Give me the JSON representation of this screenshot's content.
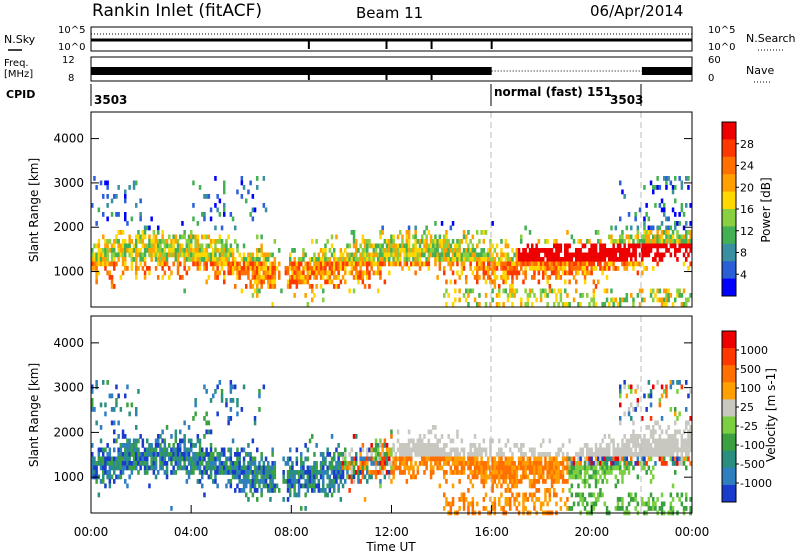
{
  "header": {
    "title": "Rankin Inlet (fitACF)",
    "beam": "Beam 11",
    "date": "06/Apr/2014"
  },
  "status_panels": {
    "nsky_label": "N.Sky",
    "nsky_ticks": [
      "10^5",
      "10^0"
    ],
    "nsearch_label": "N.Search",
    "nsearch_ticks": [
      "10^5",
      "10^0"
    ],
    "freq_label": "Freq.",
    "freq_unit": "[MHz]",
    "freq_ticks": [
      "12",
      "8"
    ],
    "nave_label": "Nave",
    "nave_ticks": [
      "60",
      "0"
    ],
    "cpid_label": "CPID",
    "cpid_segments": [
      {
        "label": "3503",
        "start_h": 0
      },
      {
        "label": "normal (fast) 151",
        "start_h": 16
      },
      {
        "label": "3503",
        "start_h": 22
      }
    ]
  },
  "chart_data": [
    {
      "type": "heatmap",
      "title": "",
      "xlabel": "",
      "ylabel": "Slant Range [km]",
      "xlim": [
        0,
        24
      ],
      "ylim": [
        200,
        4600
      ],
      "yticks": [
        "4000",
        "3000",
        "2000",
        "1000"
      ],
      "colorbar_label": "Power [dB]",
      "colorbar_ticks": [
        "28",
        "24",
        "20",
        "16",
        "12",
        "8",
        "4"
      ],
      "colorscale": [
        "#0000ff",
        "#2a5fd8",
        "#3a8fa0",
        "#44b054",
        "#88d040",
        "#ffd800",
        "#ffa000",
        "#ff7000",
        "#ff3800",
        "#ee0000"
      ]
    },
    {
      "type": "heatmap",
      "title": "",
      "xlabel": "Time UT",
      "ylabel": "Slant Range [km]",
      "xlim": [
        0,
        24
      ],
      "ylim": [
        200,
        4600
      ],
      "xticks": [
        "00:00",
        "04:00",
        "08:00",
        "12:00",
        "16:00",
        "20:00",
        "00:00"
      ],
      "yticks": [
        "4000",
        "3000",
        "2000",
        "1000"
      ],
      "colorbar_label": "Velocity [m s-1]",
      "colorbar_ticks": [
        "1000",
        "500",
        "100",
        "25",
        "-25",
        "-100",
        "-500",
        "-1000"
      ],
      "colorscale": [
        "#1a3ccc",
        "#2f7fc0",
        "#2a8e80",
        "#3aa040",
        "#7ad040",
        "#c8c8c0",
        "#ffa000",
        "#ff7000",
        "#ff3800",
        "#ee0000"
      ]
    }
  ]
}
